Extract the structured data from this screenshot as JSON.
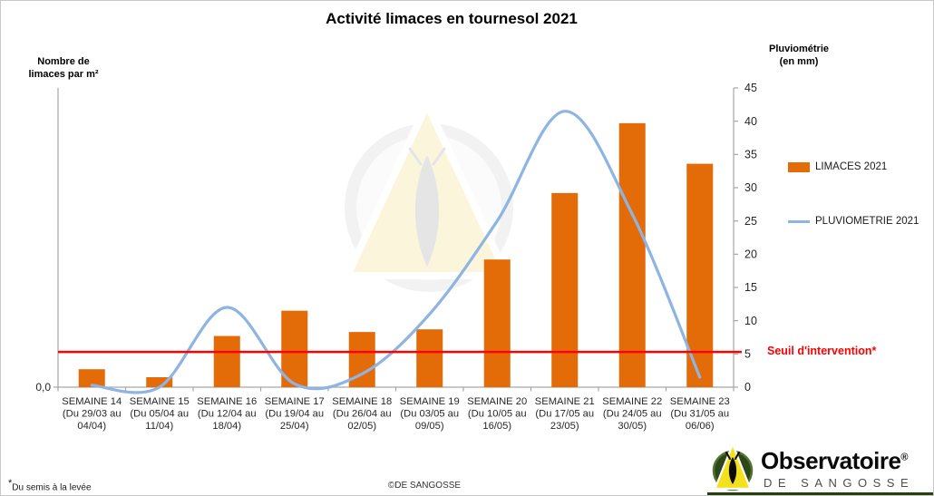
{
  "title": "Activité limaces en tournesol 2021",
  "axes": {
    "left_title_line1": "Nombre de",
    "left_title_line2": "limaces par m²",
    "left_origin_label": "0,0",
    "right_title_line1": "Pluviométrie",
    "right_title_line2": "(en mm)"
  },
  "legend": {
    "limaces_label": "LIMACES 2021",
    "pluviometrie_label": "PLUVIOMETRIE 2021"
  },
  "threshold_label": "Seuil d'intervention*",
  "footnote_star": "*",
  "footnote_text": "Du semis à la levée",
  "copyright": "©DE SANGOSSE",
  "logo": {
    "brand": "Observatoire",
    "registered_mark": "®",
    "subbrand": "DE SANGOSSE"
  },
  "colors": {
    "bar": "#E36C09",
    "line": "#8EB4E3",
    "threshold": "#FF0000",
    "axis": "#A6A6A6",
    "tick_text": "#262626",
    "logo_green": "#24400F"
  },
  "chart_data": {
    "type": "bar+line",
    "title": "Activité limaces en tournesol 2021",
    "grid": false,
    "legend_position": "right",
    "categories": [
      {
        "week": "SEMAINE 14",
        "dates_line1": "(Du 29/03 au",
        "dates_line2": "04/04)"
      },
      {
        "week": "SEMAINE 15",
        "dates_line1": "(Du 05/04 au",
        "dates_line2": "11/04)"
      },
      {
        "week": "SEMAINE 16",
        "dates_line1": "(Du 12/04 au",
        "dates_line2": "18/04)"
      },
      {
        "week": "SEMAINE 17",
        "dates_line1": "(Du 19/04 au",
        "dates_line2": "25/04)"
      },
      {
        "week": "SEMAINE 18",
        "dates_line1": "(Du 26/04 au",
        "dates_line2": "02/05)"
      },
      {
        "week": "SEMAINE 19",
        "dates_line1": "(Du 03/05 au",
        "dates_line2": "09/05)"
      },
      {
        "week": "SEMAINE 20",
        "dates_line1": "(Du 10/05 au",
        "dates_line2": "16/05)"
      },
      {
        "week": "SEMAINE 21",
        "dates_line1": "(Du 17/05 au",
        "dates_line2": "23/05)"
      },
      {
        "week": "SEMAINE 22",
        "dates_line1": "(Du 24/05 au",
        "dates_line2": "30/05)"
      },
      {
        "week": "SEMAINE 23",
        "dates_line1": "(Du 31/05 au",
        "dates_line2": "06/06)"
      }
    ],
    "series": [
      {
        "name": "LIMACES 2021",
        "type": "bar",
        "color": "#E36C09",
        "axis": "left (unlabeled, values estimated on right-axis mm scale)",
        "values": [
          2.7,
          1.5,
          7.7,
          11.5,
          8.3,
          8.7,
          19.2,
          29.2,
          39.7,
          33.6
        ]
      },
      {
        "name": "PLUVIOMETRIE 2021",
        "type": "line",
        "color": "#8EB4E3",
        "axis": "right",
        "values": [
          0.3,
          0,
          12,
          0.5,
          2,
          11,
          25,
          41.5,
          26,
          1.5
        ]
      }
    ],
    "left_axis": {
      "label": "Nombre de limaces par m²",
      "visible_tick_labels": [
        "0,0"
      ]
    },
    "right_axis": {
      "label": "Pluviométrie (en mm)",
      "range": [
        0,
        45
      ],
      "tick_step": 5,
      "ticks": [
        0,
        5,
        10,
        15,
        20,
        25,
        30,
        35,
        40,
        45
      ]
    },
    "threshold": {
      "label": "Seuil d'intervention*",
      "value": 5.3,
      "color": "#FF0000"
    }
  }
}
